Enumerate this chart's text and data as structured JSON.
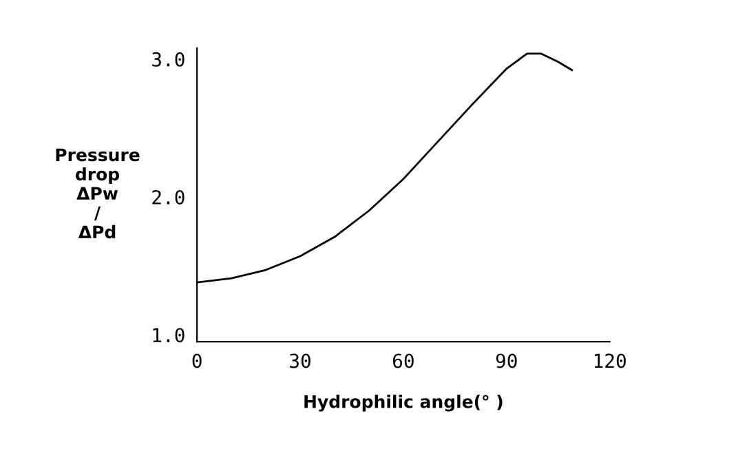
{
  "chart_data": {
    "type": "line",
    "xlabel": "Hydrophilic angle(° )",
    "ylabel": "Pressure\ndrop\nΔPw\n/\nΔPd",
    "x": [
      0,
      10,
      20,
      30,
      40,
      50,
      60,
      70,
      80,
      90,
      96,
      100,
      105,
      109
    ],
    "series": [
      {
        "color": "#000000",
        "values": [
          1.38,
          1.41,
          1.47,
          1.57,
          1.71,
          1.9,
          2.13,
          2.4,
          2.67,
          2.93,
          3.04,
          3.04,
          2.98,
          2.92
        ]
      }
    ],
    "xlim": [
      0,
      120
    ],
    "ylim": [
      0.95,
      3.08
    ],
    "xticks": [
      0,
      30,
      60,
      90,
      120
    ],
    "yticks": [
      {
        "value": 1,
        "label": "1.0"
      },
      {
        "value": 2,
        "label": "2.0"
      },
      {
        "value": 3,
        "label": "3.0"
      }
    ],
    "grid": false,
    "legend": false,
    "marker": "none",
    "line_style": "solid"
  }
}
